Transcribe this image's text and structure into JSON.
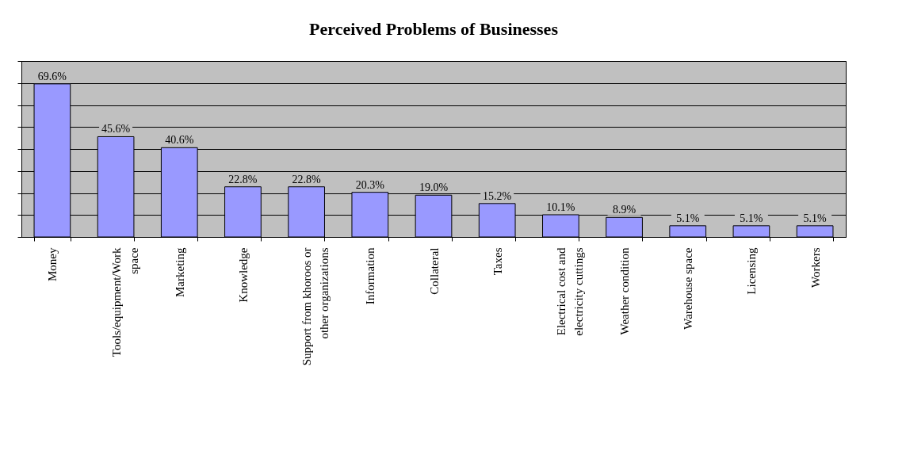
{
  "chart_data": {
    "type": "bar",
    "title": "Perceived Problems of Businesses",
    "categories": [
      "Money",
      "Tools/equipment/Work space",
      "Marketing",
      "Knowledge",
      "Support from khoroos or other organizations",
      "Information",
      "Collateral",
      "Taxes",
      "Electrical cost and electricity cuttings",
      "Weather condition",
      "Warehouse space",
      "Licensing",
      "Workers"
    ],
    "values": [
      69.6,
      45.6,
      40.6,
      22.8,
      22.8,
      20.3,
      19.0,
      15.2,
      10.1,
      8.9,
      5.1,
      5.1,
      5.1
    ],
    "value_labels": [
      "69.6%",
      "45.6%",
      "40.6%",
      "22.8%",
      "22.8%",
      "20.3%",
      "19.0%",
      "15.2%",
      "10.1%",
      "8.9%",
      "5.1%",
      "5.1%",
      "5.1%"
    ],
    "color": "#9999ff",
    "ylim": [
      0,
      80
    ],
    "yticks": [
      {
        "value": 0,
        "label": null
      },
      {
        "value": 10,
        "label": null
      },
      {
        "value": 20,
        "label": null
      },
      {
        "value": 30,
        "label": null
      },
      {
        "value": 40,
        "label": null
      },
      {
        "value": 50,
        "label": null
      },
      {
        "value": 60,
        "label": null
      },
      {
        "value": 70,
        "label": null
      },
      {
        "value": 80,
        "label": null
      }
    ],
    "grid": "y",
    "tick_labels": "x"
  }
}
